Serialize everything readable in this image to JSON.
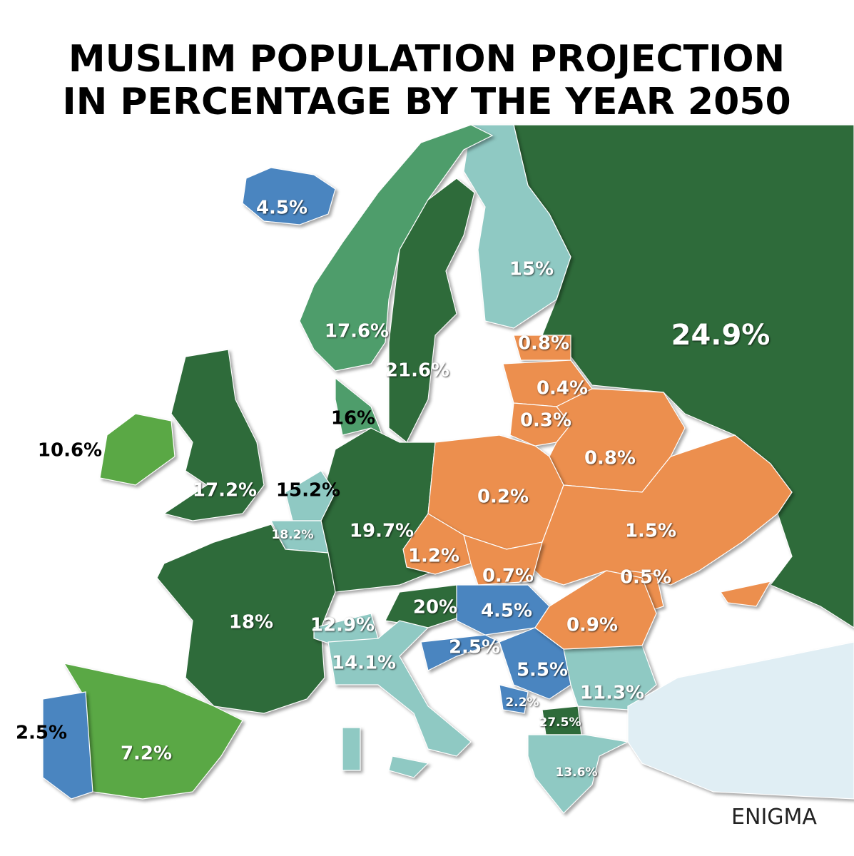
{
  "header": {
    "title": [
      "MUSLIM POPULATION PROJECTION",
      "IN PERCENTAGE BY THE YEAR 2050"
    ]
  },
  "regions": [
    {
      "label": "4.5%",
      "color": "#4a85c0"
    },
    {
      "label": "15%",
      "color": "#8fc9c3"
    },
    {
      "label": "24.9%",
      "color": "#2e6b3a"
    },
    {
      "label": "17.6%",
      "color": "#4e9d6b"
    },
    {
      "label": "21.6%",
      "color": "#2e6b3a"
    },
    {
      "label": "0.8%",
      "color": "#ec8f4e"
    },
    {
      "label": "0.4%",
      "color": "#ec8f4e"
    },
    {
      "label": "0.3%",
      "color": "#ec8f4e"
    },
    {
      "label": "16%",
      "color": "#4e9d6b"
    },
    {
      "label": "10.6%",
      "color": "#5aa845"
    },
    {
      "label": "17.2%",
      "color": "#2e6b3a"
    },
    {
      "label": "15.2%",
      "color": "#8fc9c3"
    },
    {
      "label": "0.8%",
      "color": "#ec8f4e"
    },
    {
      "label": "18.2%",
      "color": "#8fc9c3"
    },
    {
      "label": "19.7%",
      "color": "#2e6b3a"
    },
    {
      "label": "0.2%",
      "color": "#ec8f4e"
    },
    {
      "label": "1.5%",
      "color": "#ec8f4e"
    },
    {
      "label": "1.2%",
      "color": "#ec8f4e"
    },
    {
      "label": "0.7%",
      "color": "#ec8f4e"
    },
    {
      "label": "0.5%",
      "color": "#ec8f4e"
    },
    {
      "label": "20%",
      "color": "#2e6b3a"
    },
    {
      "label": "4.5%",
      "color": "#4a85c0"
    },
    {
      "label": "0.9%",
      "color": "#ec8f4e"
    },
    {
      "label": "18%",
      "color": "#2e6b3a"
    },
    {
      "label": "12.9%",
      "color": "#8fc9c3"
    },
    {
      "label": "2.5%",
      "color": "#4a85c0"
    },
    {
      "label": "14.1%",
      "color": "#8fc9c3"
    },
    {
      "label": "5.5%",
      "color": "#4a85c0"
    },
    {
      "label": "11.3%",
      "color": "#8fc9c3"
    },
    {
      "label": "2.2%",
      "color": "#4a85c0"
    },
    {
      "label": "27.5%",
      "color": "#2e6b3a"
    },
    {
      "label": "2.5%",
      "color": "#4a85c0"
    },
    {
      "label": "7.2%",
      "color": "#5aa845"
    },
    {
      "label": "13.6%",
      "color": "#8fc9c3"
    }
  ],
  "watermark": "ENIGMA"
}
